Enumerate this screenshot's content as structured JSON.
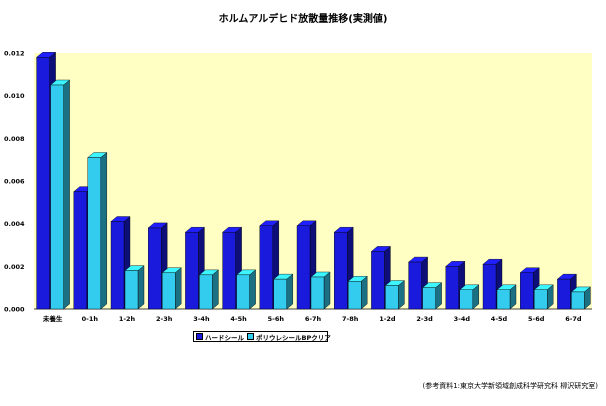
{
  "chart_data": {
    "type": "bar",
    "title": "ホルムアルデヒド放散量推移(実測値)",
    "categories": [
      "未養生",
      "0-1h",
      "1-2h",
      "2-3h",
      "3-4h",
      "4-5h",
      "5-6h",
      "6-7h",
      "7-8h",
      "1-2d",
      "2-3d",
      "3-4d",
      "4-5d",
      "5-6d",
      "6-7d"
    ],
    "series": [
      {
        "name": "ハードシール",
        "color": "#1a1adc",
        "values": [
          0.0118,
          0.0055,
          0.0041,
          0.0038,
          0.0036,
          0.0036,
          0.0039,
          0.0039,
          0.0036,
          0.0027,
          0.0022,
          0.002,
          0.0021,
          0.0017,
          0.0014
        ]
      },
      {
        "name": "ポリウレシールBPクリア",
        "color": "#33ccee",
        "values": [
          0.0105,
          0.0071,
          0.0018,
          0.0017,
          0.0016,
          0.0016,
          0.0014,
          0.0015,
          0.0013,
          0.0011,
          0.001,
          0.0009,
          0.0009,
          0.0009,
          0.0008
        ]
      }
    ],
    "yticks": [
      "0.000",
      "0.002",
      "0.004",
      "0.006",
      "0.008",
      "0.010",
      "0.012"
    ],
    "ylim": [
      0,
      0.012
    ],
    "grid": false,
    "legend_position": "bottom-left"
  },
  "note": "(参考資料1:東京大学新領域創成科学研究科 柳沢研究室)"
}
